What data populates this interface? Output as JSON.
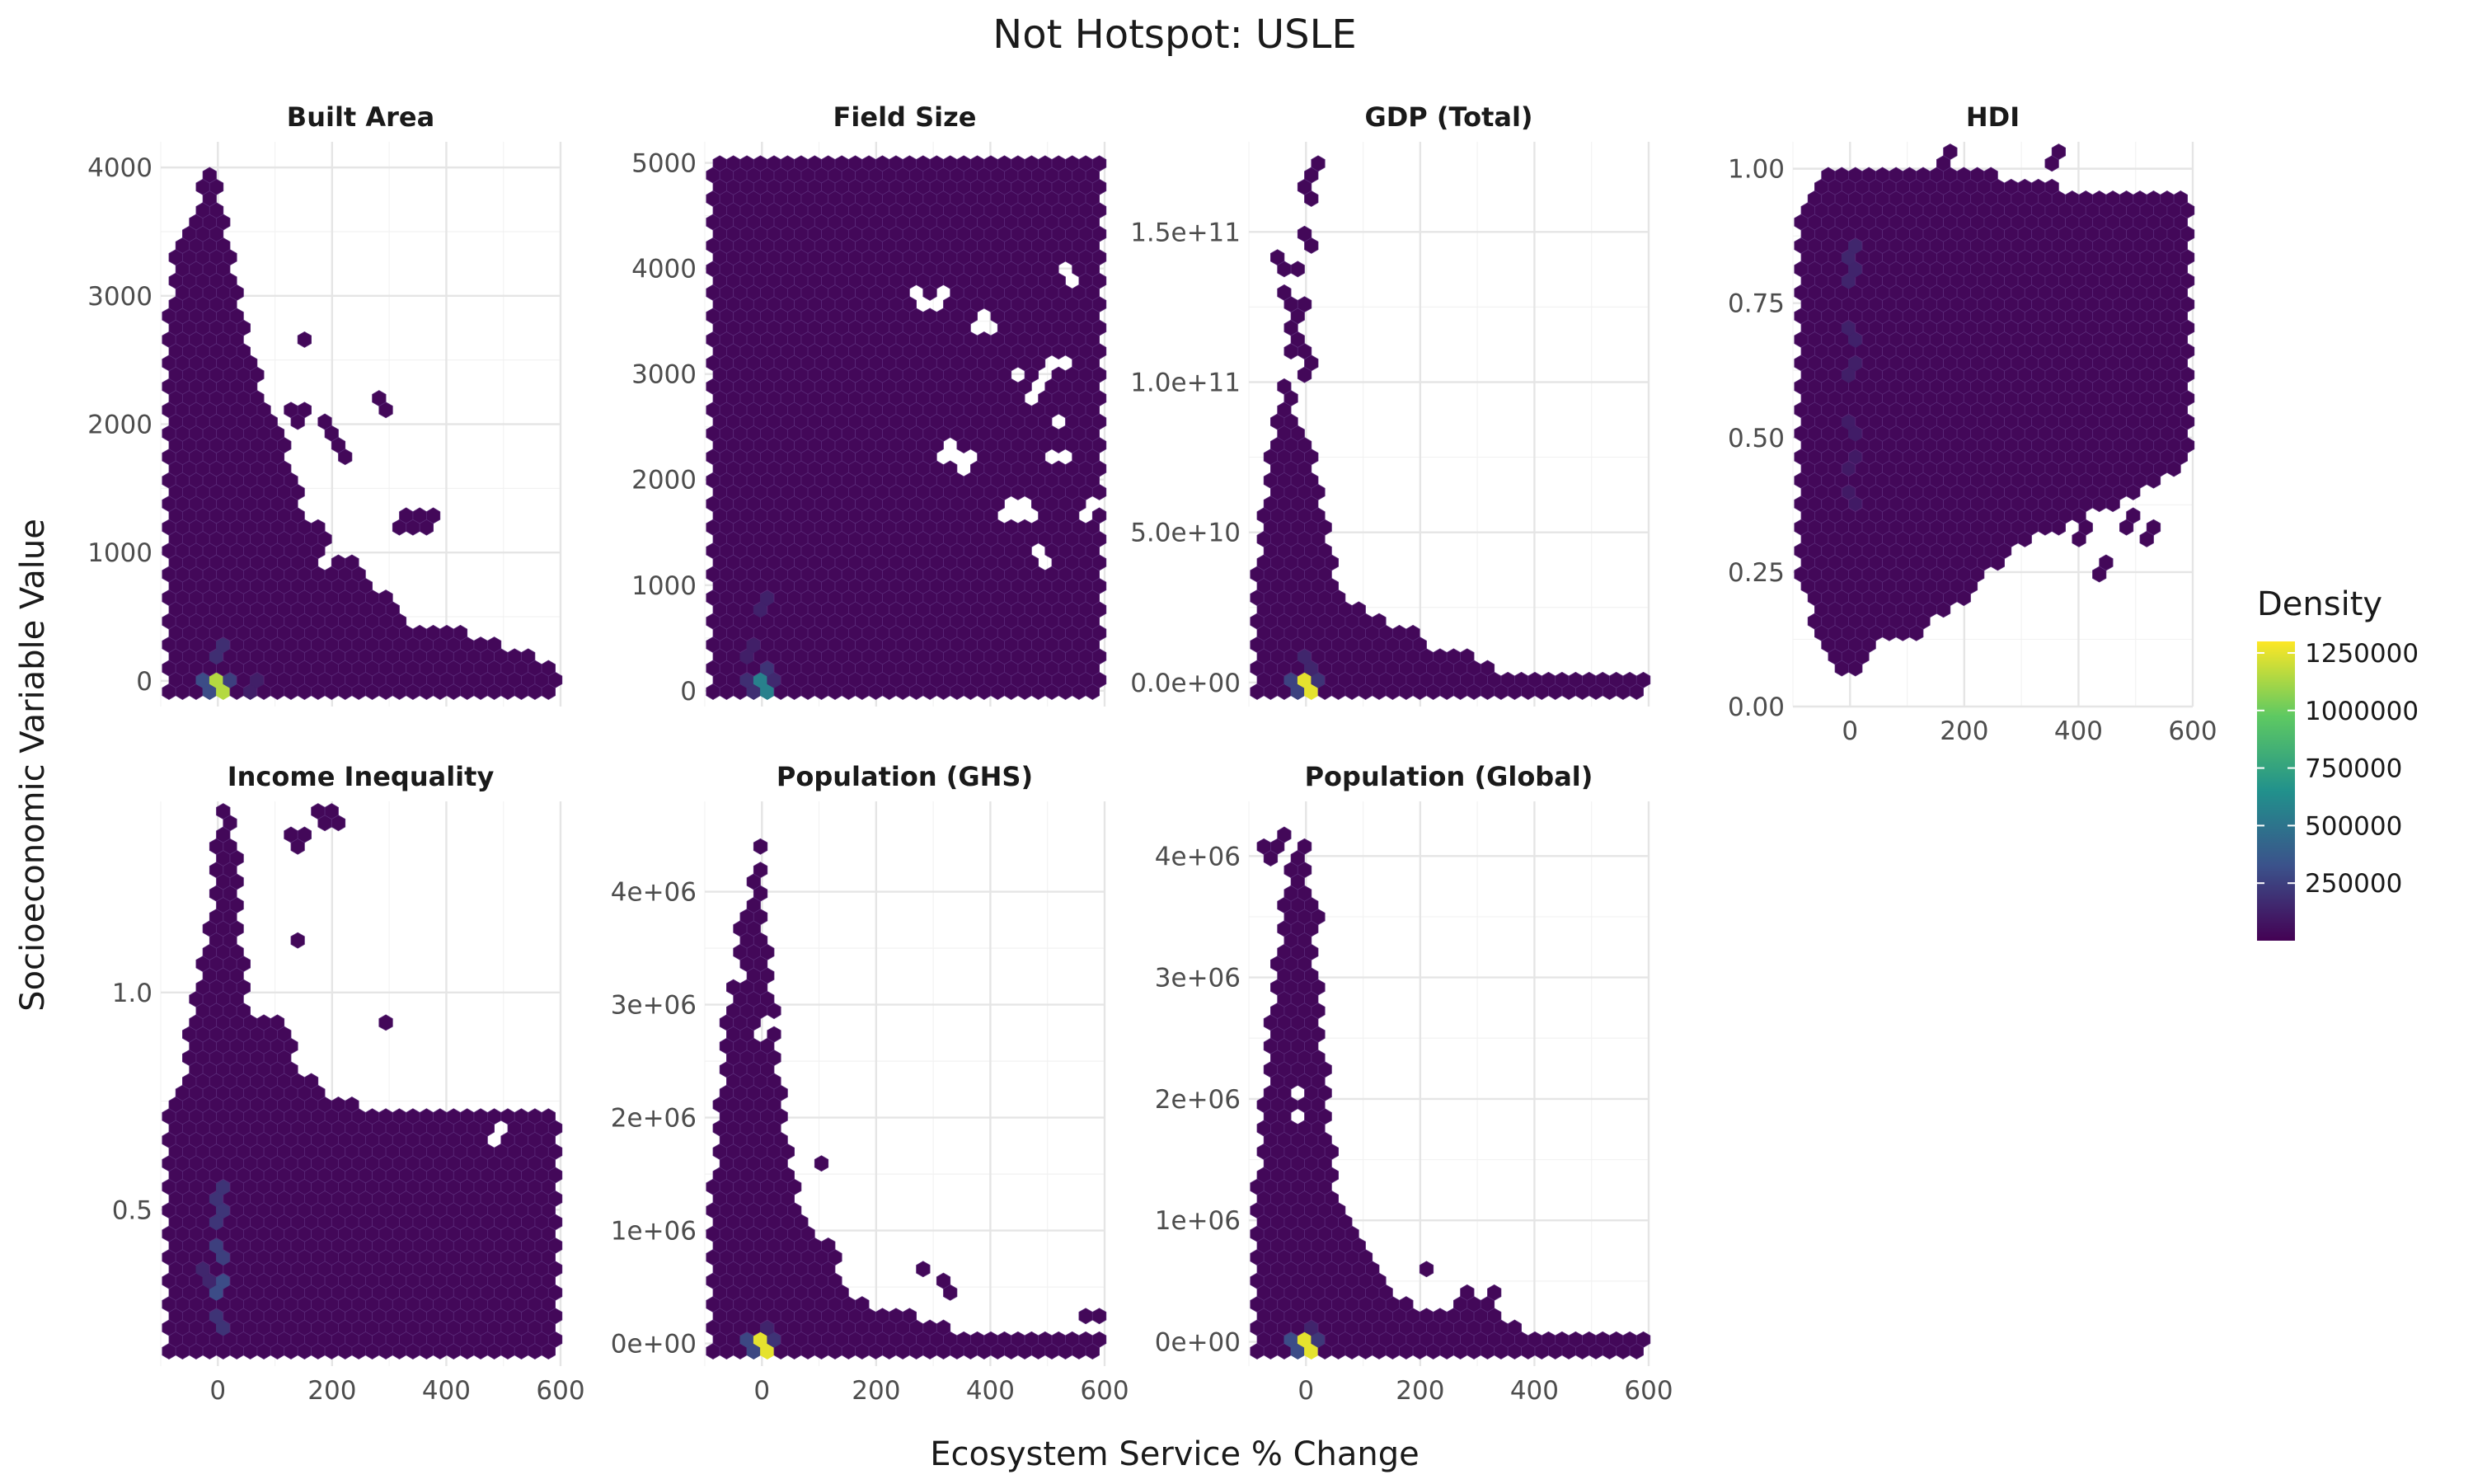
{
  "chart_data": {
    "type": "hexbin",
    "title": "Not Hotspot: USLE",
    "xlabel": "Ecosystem Service % Change",
    "ylabel": "Socioeconomic Variable Value",
    "xlim": [
      -100,
      600
    ],
    "x_ticks": [
      0,
      200,
      400,
      600
    ],
    "x_tick_labels": [
      "0",
      "200",
      "400",
      "600"
    ],
    "grid": true,
    "legend": {
      "title": "Density",
      "position": "right",
      "type": "colorbar",
      "palette": "viridis",
      "range": [
        0,
        1300000
      ],
      "ticks": [
        250000,
        500000,
        750000,
        1000000,
        1250000
      ],
      "tick_labels": [
        "250000",
        "500000",
        "750000",
        "1000000",
        "1250000"
      ],
      "colors": [
        "#440154",
        "#3b528b",
        "#21918c",
        "#5ec962",
        "#fde725"
      ]
    },
    "facets": [
      {
        "label": "Built Area",
        "ylim": [
          -200,
          4200
        ],
        "y_ticks": [
          0,
          1000,
          2000,
          3000,
          4000
        ],
        "y_tick_labels": [
          "0",
          "1000",
          "2000",
          "3000",
          "4000"
        ],
        "show_x_labels": false,
        "envelope": [
          [
            -100,
            2300
          ],
          [
            -80,
            3200
          ],
          [
            -60,
            3550
          ],
          [
            -40,
            3700
          ],
          [
            -20,
            4000
          ],
          [
            -5,
            4100
          ],
          [
            10,
            3600
          ],
          [
            30,
            3100
          ],
          [
            50,
            2700
          ],
          [
            80,
            2300
          ],
          [
            110,
            1900
          ],
          [
            150,
            1500
          ],
          [
            200,
            1100
          ],
          [
            250,
            850
          ],
          [
            300,
            650
          ],
          [
            340,
            430
          ],
          [
            380,
            400
          ],
          [
            450,
            360
          ],
          [
            500,
            250
          ],
          [
            560,
            200
          ],
          [
            600,
            100
          ]
        ],
        "background_density": 30000,
        "outliers": [
          [
            145,
            2650
          ],
          [
            285,
            2150
          ],
          [
            140,
            2050
          ],
          [
            195,
            1950
          ],
          [
            220,
            1800
          ],
          [
            330,
            1250
          ],
          [
            365,
            1250
          ]
        ],
        "holes": [
          [
            170,
            1750
          ],
          [
            235,
            1700
          ],
          [
            160,
            1300
          ],
          [
            250,
            1100
          ],
          [
            195,
            1000
          ],
          [
            340,
            950
          ]
        ],
        "hotspots": [
          {
            "x": 0,
            "y": 0,
            "density": 1150000
          },
          {
            "x": -20,
            "y": 0,
            "density": 300000
          },
          {
            "x": 20,
            "y": 0,
            "density": 250000
          },
          {
            "x": 0,
            "y": 200,
            "density": 180000
          },
          {
            "x": 60,
            "y": 0,
            "density": 120000
          }
        ]
      },
      {
        "label": "Field Size",
        "ylim": [
          -150,
          5200
        ],
        "y_ticks": [
          0,
          1000,
          2000,
          3000,
          4000,
          5000
        ],
        "y_tick_labels": [
          "0",
          "1000",
          "2000",
          "3000",
          "4000",
          "5000"
        ],
        "show_x_labels": false,
        "envelope": [
          [
            -100,
            5050
          ],
          [
            600,
            5050
          ]
        ],
        "background_density": 30000,
        "outliers": [],
        "holes": [
          [
            280,
            3700
          ],
          [
            310,
            3700
          ],
          [
            390,
            3500
          ],
          [
            540,
            3950
          ],
          [
            450,
            3000
          ],
          [
            500,
            3050
          ],
          [
            540,
            3100
          ],
          [
            480,
            2800
          ],
          [
            510,
            2550
          ],
          [
            330,
            2300
          ],
          [
            360,
            2150
          ],
          [
            430,
            1750
          ],
          [
            460,
            1750
          ],
          [
            490,
            1300
          ],
          [
            570,
            1700
          ],
          [
            520,
            2200
          ]
        ],
        "hotspots": [
          {
            "x": 0,
            "y": 0,
            "density": 560000
          },
          {
            "x": 0,
            "y": 180,
            "density": 200000
          },
          {
            "x": -20,
            "y": 0,
            "density": 180000
          },
          {
            "x": 20,
            "y": 0,
            "density": 160000
          },
          {
            "x": 0,
            "y": 850,
            "density": 130000
          },
          {
            "x": -20,
            "y": 400,
            "density": 120000
          }
        ]
      },
      {
        "label": "GDP (Total)",
        "ylim": [
          -8000000000,
          180000000000
        ],
        "y_ticks": [
          0,
          50000000000,
          100000000000,
          150000000000
        ],
        "y_tick_labels": [
          "0.0e+00",
          "5.0e+10",
          "1.0e+11",
          "1.5e+11"
        ],
        "show_x_labels": false,
        "envelope": [
          [
            -100,
            24000000000
          ],
          [
            -80,
            45000000000
          ],
          [
            -60,
            85000000000
          ],
          [
            -40,
            100000000000
          ],
          [
            -20,
            90000000000
          ],
          [
            0,
            80000000000
          ],
          [
            20,
            70000000000
          ],
          [
            40,
            45000000000
          ],
          [
            60,
            30000000000
          ],
          [
            100,
            25000000000
          ],
          [
            140,
            20000000000
          ],
          [
            200,
            14000000000
          ],
          [
            250,
            10000000000
          ],
          [
            300,
            8000000000
          ],
          [
            350,
            4000000000
          ],
          [
            400,
            2000000000
          ],
          [
            600,
            1500000000
          ]
        ],
        "background_density": 30000,
        "outliers": [
          [
            15,
            172000000000
          ],
          [
            0,
            162000000000
          ],
          [
            0,
            148000000000
          ],
          [
            -45,
            141000000000
          ],
          [
            -20,
            138000000000
          ],
          [
            -30,
            129000000000
          ],
          [
            -5,
            126000000000
          ],
          [
            -25,
            120000000000
          ],
          [
            -15,
            112000000000
          ],
          [
            0,
            104000000000
          ],
          [
            -30,
            98000000000
          ],
          [
            185,
            16000000000
          ]
        ],
        "holes": [],
        "hotspots": [
          {
            "x": 0,
            "y": 0,
            "density": 1250000
          },
          {
            "x": -20,
            "y": 0,
            "density": 260000
          },
          {
            "x": 20,
            "y": 0,
            "density": 200000
          },
          {
            "x": 0,
            "y": 6000000000,
            "density": 150000
          }
        ]
      },
      {
        "label": "HDI",
        "ylim": [
          0,
          1.05
        ],
        "y_ticks": [
          0,
          0.25,
          0.5,
          0.75,
          1
        ],
        "y_tick_labels": [
          "0.00",
          "0.25",
          "0.50",
          "0.75",
          "1.00"
        ],
        "show_x_labels": true,
        "envelope_low": [
          [
            -100,
            0.28
          ],
          [
            -70,
            0.18
          ],
          [
            -40,
            0.1
          ],
          [
            0,
            0.05
          ],
          [
            50,
            0.12
          ],
          [
            100,
            0.12
          ],
          [
            150,
            0.16
          ],
          [
            200,
            0.2
          ],
          [
            240,
            0.25
          ],
          [
            300,
            0.3
          ],
          [
            350,
            0.33
          ],
          [
            400,
            0.35
          ],
          [
            450,
            0.37
          ],
          [
            500,
            0.4
          ],
          [
            550,
            0.42
          ],
          [
            600,
            0.45
          ]
        ],
        "envelope_high": [
          [
            -100,
            0.9
          ],
          [
            -60,
            0.98
          ],
          [
            -20,
            1.01
          ],
          [
            100,
            1.0
          ],
          [
            200,
            1.0
          ],
          [
            300,
            0.98
          ],
          [
            400,
            0.96
          ],
          [
            500,
            0.96
          ],
          [
            600,
            0.94
          ]
        ],
        "background_density": 30000,
        "outliers": [
          [
            170,
            1.02
          ],
          [
            355,
            1.02
          ],
          [
            440,
            0.26
          ],
          [
            365,
            0.35
          ],
          [
            410,
            0.33
          ],
          [
            490,
            0.34
          ],
          [
            530,
            0.33
          ]
        ],
        "holes": [],
        "hotspots": [
          {
            "x": 0,
            "y": 0.85,
            "density": 150000
          },
          {
            "x": 0,
            "y": 0.8,
            "density": 140000
          },
          {
            "x": 0,
            "y": 0.7,
            "density": 130000
          },
          {
            "x": 0,
            "y": 0.62,
            "density": 120000
          },
          {
            "x": 0,
            "y": 0.52,
            "density": 110000
          },
          {
            "x": 0,
            "y": 0.45,
            "density": 100000
          },
          {
            "x": 0,
            "y": 0.38,
            "density": 100000
          }
        ]
      },
      {
        "label": "Income Inequality",
        "ylim": [
          0.14,
          1.44
        ],
        "y_ticks": [
          0.5,
          1
        ],
        "y_tick_labels": [
          "0.5",
          "1.0"
        ],
        "show_x_labels": true,
        "envelope": [
          [
            -100,
            0.7
          ],
          [
            -60,
            0.78
          ],
          [
            -50,
            0.92
          ],
          [
            -30,
            1.05
          ],
          [
            -10,
            1.18
          ],
          [
            0,
            1.43
          ],
          [
            30,
            1.42
          ],
          [
            50,
            0.95
          ],
          [
            100,
            0.95
          ],
          [
            150,
            0.82
          ],
          [
            200,
            0.75
          ],
          [
            300,
            0.73
          ],
          [
            500,
            0.72
          ],
          [
            600,
            0.72
          ]
        ],
        "envelope_low": [
          [
            -100,
            0.15
          ],
          [
            600,
            0.15
          ]
        ],
        "background_density": 30000,
        "outliers": [
          [
            140,
            1.35
          ],
          [
            180,
            1.4
          ],
          [
            200,
            1.4
          ],
          [
            145,
            1.12
          ],
          [
            290,
            0.93
          ]
        ],
        "holes": [
          [
            490,
            0.67
          ]
        ],
        "hotspots": [
          {
            "x": 0,
            "y": 0.55,
            "density": 200000
          },
          {
            "x": 0,
            "y": 0.48,
            "density": 210000
          },
          {
            "x": 0,
            "y": 0.4,
            "density": 250000
          },
          {
            "x": 0,
            "y": 0.32,
            "density": 300000
          },
          {
            "x": 0,
            "y": 0.25,
            "density": 200000
          },
          {
            "x": -20,
            "y": 0.35,
            "density": 150000
          }
        ]
      },
      {
        "label": "Population (GHS)",
        "ylim": [
          -200000,
          4800000
        ],
        "y_ticks": [
          0,
          1000000,
          2000000,
          3000000,
          4000000
        ],
        "y_tick_labels": [
          "0e+00",
          "1e+06",
          "2e+06",
          "3e+06",
          "4e+06"
        ],
        "show_x_labels": true,
        "envelope": [
          [
            -100,
            700000
          ],
          [
            -70,
            2500000
          ],
          [
            -50,
            3500000
          ],
          [
            -20,
            4000000
          ],
          [
            -5,
            4600000
          ],
          [
            10,
            3600000
          ],
          [
            30,
            2500000
          ],
          [
            50,
            1500000
          ],
          [
            80,
            1100000
          ],
          [
            120,
            700000
          ],
          [
            160,
            400000
          ],
          [
            200,
            300000
          ],
          [
            250,
            300000
          ],
          [
            300,
            200000
          ],
          [
            350,
            100000
          ],
          [
            400,
            50000
          ],
          [
            600,
            50000
          ]
        ],
        "background_density": 30000,
        "outliers": [
          [
            95,
            1600000
          ],
          [
            120,
            850000
          ],
          [
            280,
            650000
          ],
          [
            325,
            500000
          ],
          [
            580,
            250000
          ]
        ],
        "holes": [
          [
            -40,
            3300000
          ],
          [
            0,
            2800000
          ]
        ],
        "hotspots": [
          {
            "x": 0,
            "y": 0,
            "density": 1250000
          },
          {
            "x": -20,
            "y": 0,
            "density": 280000
          },
          {
            "x": 20,
            "y": 0,
            "density": 200000
          },
          {
            "x": 0,
            "y": 100000,
            "density": 140000
          }
        ]
      },
      {
        "label": "Population (Global)",
        "ylim": [
          -200000,
          4450000
        ],
        "y_ticks": [
          0,
          1000000,
          2000000,
          3000000,
          4000000
        ],
        "y_tick_labels": [
          "0e+00",
          "1e+06",
          "2e+06",
          "3e+06",
          "4e+06"
        ],
        "show_x_labels": true,
        "envelope": [
          [
            -100,
            400000
          ],
          [
            -80,
            1700000
          ],
          [
            -60,
            2800000
          ],
          [
            -40,
            3700000
          ],
          [
            -20,
            4000000
          ],
          [
            -5,
            4300000
          ],
          [
            10,
            3600000
          ],
          [
            30,
            2500000
          ],
          [
            50,
            1300000
          ],
          [
            80,
            1000000
          ],
          [
            120,
            700000
          ],
          [
            160,
            400000
          ],
          [
            200,
            300000
          ],
          [
            250,
            250000
          ],
          [
            300,
            400000
          ],
          [
            350,
            150000
          ],
          [
            400,
            50000
          ],
          [
            600,
            50000
          ]
        ],
        "background_density": 30000,
        "outliers": [
          [
            -70,
            4050000
          ],
          [
            -40,
            4150000
          ],
          [
            10,
            3500000
          ],
          [
            205,
            600000
          ],
          [
            290,
            400000
          ],
          [
            330,
            400000
          ]
        ],
        "holes": [
          [
            -20,
            2050000
          ],
          [
            -5,
            1850000
          ]
        ],
        "hotspots": [
          {
            "x": 0,
            "y": 0,
            "density": 1250000
          },
          {
            "x": -20,
            "y": 0,
            "density": 300000
          },
          {
            "x": 20,
            "y": 0,
            "density": 220000
          },
          {
            "x": 0,
            "y": 100000,
            "density": 140000
          }
        ]
      }
    ]
  }
}
